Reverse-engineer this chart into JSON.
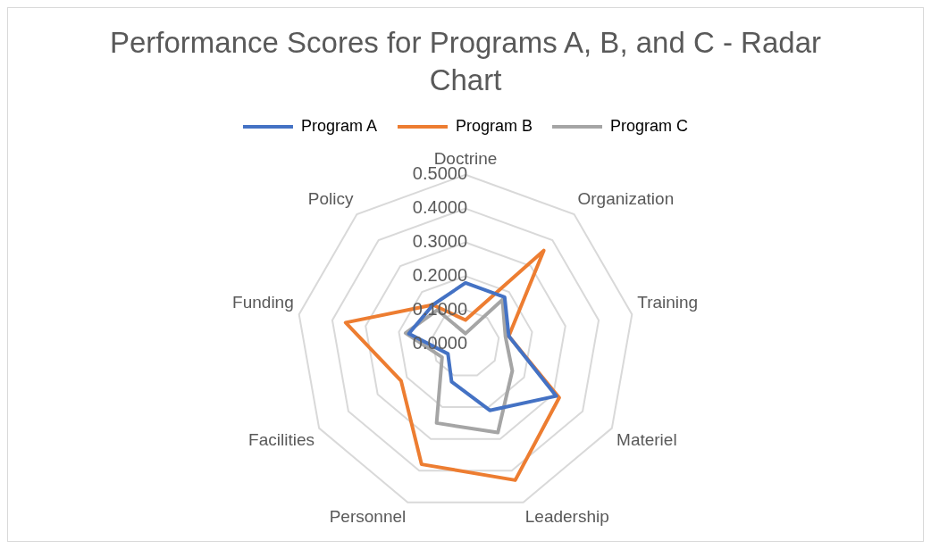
{
  "chart_data": {
    "type": "radar",
    "title": "Performance Scores for Programs A, B, and C - Radar Chart",
    "categories": [
      "Doctrine",
      "Organization",
      "Training",
      "Materiel",
      "Leadership",
      "Personnel",
      "Facilities",
      "Funding",
      "Policy"
    ],
    "series": [
      {
        "name": "Program A",
        "color": "#4472c4",
        "values": [
          0.18,
          0.18,
          0.13,
          0.31,
          0.21,
          0.12,
          0.06,
          0.17,
          0.15
        ]
      },
      {
        "name": "Program B",
        "color": "#ed7d31",
        "values": [
          0.07,
          0.36,
          0.13,
          0.32,
          0.43,
          0.38,
          0.22,
          0.36,
          0.15
        ]
      },
      {
        "name": "Program C",
        "color": "#a5a5a5",
        "values": [
          0.03,
          0.17,
          0.12,
          0.16,
          0.28,
          0.25,
          0.08,
          0.18,
          0.13
        ]
      }
    ],
    "ylim": [
      0,
      0.5
    ],
    "yticks": [
      {
        "value": 0,
        "label": "0.0000"
      },
      {
        "value": 0.1,
        "label": "0.1000"
      },
      {
        "value": 0.2,
        "label": "0.2000"
      },
      {
        "value": 0.3,
        "label": "0.3000"
      },
      {
        "value": 0.4,
        "label": "0.4000"
      },
      {
        "value": 0.5,
        "label": "0.5000"
      }
    ],
    "grid": true,
    "legend": "top",
    "marker": "none",
    "line_style": "solid"
  }
}
